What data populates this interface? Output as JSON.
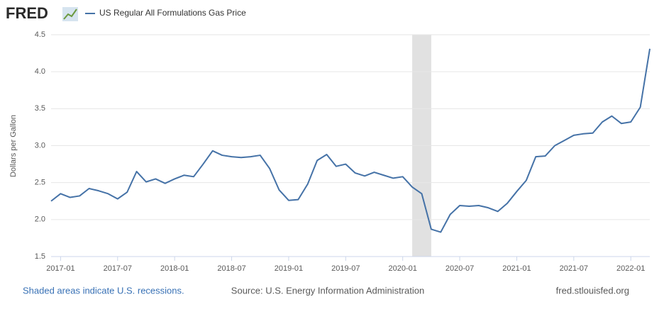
{
  "chart_data": {
    "type": "line",
    "logo": "FRED",
    "legend": "US Regular All Formulations Gas Price",
    "ylabel": "Dollars per Gallon",
    "footer_left": "Shaded areas indicate U.S. recessions.",
    "footer_center": "Source: U.S. Energy Information Administration",
    "footer_right": "fred.stlouisfed.org",
    "x": [
      "2016-12",
      "2017-01",
      "2017-02",
      "2017-03",
      "2017-04",
      "2017-05",
      "2017-06",
      "2017-07",
      "2017-08",
      "2017-09",
      "2017-10",
      "2017-11",
      "2017-12",
      "2018-01",
      "2018-02",
      "2018-03",
      "2018-04",
      "2018-05",
      "2018-06",
      "2018-07",
      "2018-08",
      "2018-09",
      "2018-10",
      "2018-11",
      "2018-12",
      "2019-01",
      "2019-02",
      "2019-03",
      "2019-04",
      "2019-05",
      "2019-06",
      "2019-07",
      "2019-08",
      "2019-09",
      "2019-10",
      "2019-11",
      "2019-12",
      "2020-01",
      "2020-02",
      "2020-03",
      "2020-04",
      "2020-05",
      "2020-06",
      "2020-07",
      "2020-08",
      "2020-09",
      "2020-10",
      "2020-11",
      "2020-12",
      "2021-01",
      "2021-02",
      "2021-03",
      "2021-04",
      "2021-05",
      "2021-06",
      "2021-07",
      "2021-08",
      "2021-09",
      "2021-10",
      "2021-11",
      "2021-12",
      "2022-01",
      "2022-02",
      "2022-03"
    ],
    "series": [
      {
        "name": "US Regular All Formulations Gas Price",
        "color": "#4572a7",
        "values": [
          2.25,
          2.35,
          2.3,
          2.32,
          2.42,
          2.39,
          2.35,
          2.28,
          2.37,
          2.65,
          2.51,
          2.55,
          2.49,
          2.55,
          2.6,
          2.58,
          2.75,
          2.93,
          2.87,
          2.85,
          2.84,
          2.85,
          2.87,
          2.69,
          2.4,
          2.26,
          2.27,
          2.48,
          2.8,
          2.88,
          2.72,
          2.75,
          2.63,
          2.59,
          2.64,
          2.6,
          2.56,
          2.58,
          2.44,
          2.35,
          1.87,
          1.83,
          2.07,
          2.19,
          2.18,
          2.19,
          2.16,
          2.11,
          2.22,
          2.38,
          2.53,
          2.85,
          2.86,
          3.0,
          3.07,
          3.14,
          3.16,
          3.17,
          3.32,
          3.4,
          3.3,
          3.32,
          3.52,
          4.31
        ]
      }
    ],
    "recessions": [
      {
        "start": "2020-02",
        "end": "2020-04"
      }
    ],
    "recession_color": "#e1e1e1",
    "xlim": [
      "2016-12",
      "2022-03"
    ],
    "xticks": [
      "2017-01",
      "2017-07",
      "2018-01",
      "2018-07",
      "2019-01",
      "2019-07",
      "2020-01",
      "2020-07",
      "2021-01",
      "2021-07",
      "2022-01"
    ],
    "ylim": [
      1.5,
      4.5
    ],
    "yticks": [
      1.5,
      {
        "value": 2.0,
        "label": "2.0"
      },
      2.5,
      {
        "value": 3.0,
        "label": "3.0"
      },
      3.5,
      {
        "value": 4.0,
        "label": "4.0"
      },
      4.5
    ],
    "grid": true
  }
}
